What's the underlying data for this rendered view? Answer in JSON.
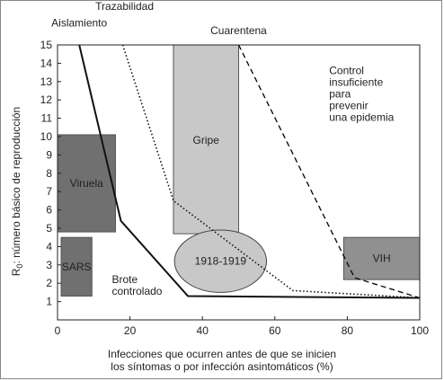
{
  "chart_data": {
    "type": "line",
    "xlabel_line1": "Infecciones que ocurren antes de que se inicien",
    "xlabel_line2": "los síntomas o por infección asintomáticos (%)",
    "ylabel_main": "R",
    "ylabel_sub": "0",
    "ylabel_rest": ": número básico de reproducción",
    "xlim": [
      0,
      100
    ],
    "ylim": [
      0,
      15
    ],
    "x_ticks": [
      0,
      20,
      40,
      60,
      80,
      100
    ],
    "y_ticks": [
      1,
      2,
      3,
      4,
      5,
      6,
      7,
      8,
      9,
      10,
      11,
      12,
      13,
      14,
      15
    ],
    "series": [
      {
        "name": "Aislamiento",
        "style": "solid",
        "points": [
          [
            6,
            15
          ],
          [
            17.5,
            5.4
          ],
          [
            36,
            1.3
          ],
          [
            100,
            1.2
          ]
        ]
      },
      {
        "name": "Trazabilidad",
        "style": "dotted",
        "points": [
          [
            18,
            15
          ],
          [
            32,
            6.5
          ],
          [
            65,
            1.6
          ],
          [
            100,
            1.2
          ]
        ]
      },
      {
        "name": "Cuarentena",
        "style": "dashed",
        "points": [
          [
            50,
            15
          ],
          [
            82,
            2.3
          ],
          [
            100,
            1.2
          ]
        ]
      }
    ],
    "regions": [
      {
        "label": "Viruela",
        "shape": "rect",
        "x": [
          0,
          16
        ],
        "y": [
          4.8,
          10.1
        ],
        "fill": "#707070",
        "text_color": "#ffffff"
      },
      {
        "label": "SARS",
        "shape": "rect",
        "x": [
          1,
          9.5
        ],
        "y": [
          1.3,
          4.5
        ],
        "fill": "#707070",
        "text_color": "#ffffff"
      },
      {
        "label": "Gripe",
        "shape": "rect",
        "x": [
          32,
          50
        ],
        "y": [
          4.7,
          15
        ],
        "fill": "#c8c8c8",
        "text_color": "#222222"
      },
      {
        "label": "VIH",
        "shape": "rect",
        "x": [
          79,
          100
        ],
        "y": [
          2.2,
          4.5
        ],
        "fill": "#909090",
        "text_color": "#222222"
      },
      {
        "label": "1918-1919",
        "shape": "ellipse",
        "cx": 45,
        "cy": 3.2,
        "rx": 12.7,
        "ry": 1.7,
        "fill": "#c8c8c8",
        "text_color": "#222222"
      }
    ],
    "annotations": [
      {
        "text": "Aislamiento",
        "x": 6,
        "y": 16.0
      },
      {
        "text": "Trazabilidad",
        "x": 18.5,
        "y": 16.9
      },
      {
        "text": "Cuarentena",
        "x": 50,
        "y": 15.6
      },
      {
        "lines": [
          "Control",
          "insuficiente",
          "para",
          "prevenir",
          "una epidemia"
        ],
        "x": 75,
        "y": 13.4
      },
      {
        "lines": [
          "Brote",
          "controlado"
        ],
        "x": 15,
        "y": 2.0
      }
    ]
  }
}
